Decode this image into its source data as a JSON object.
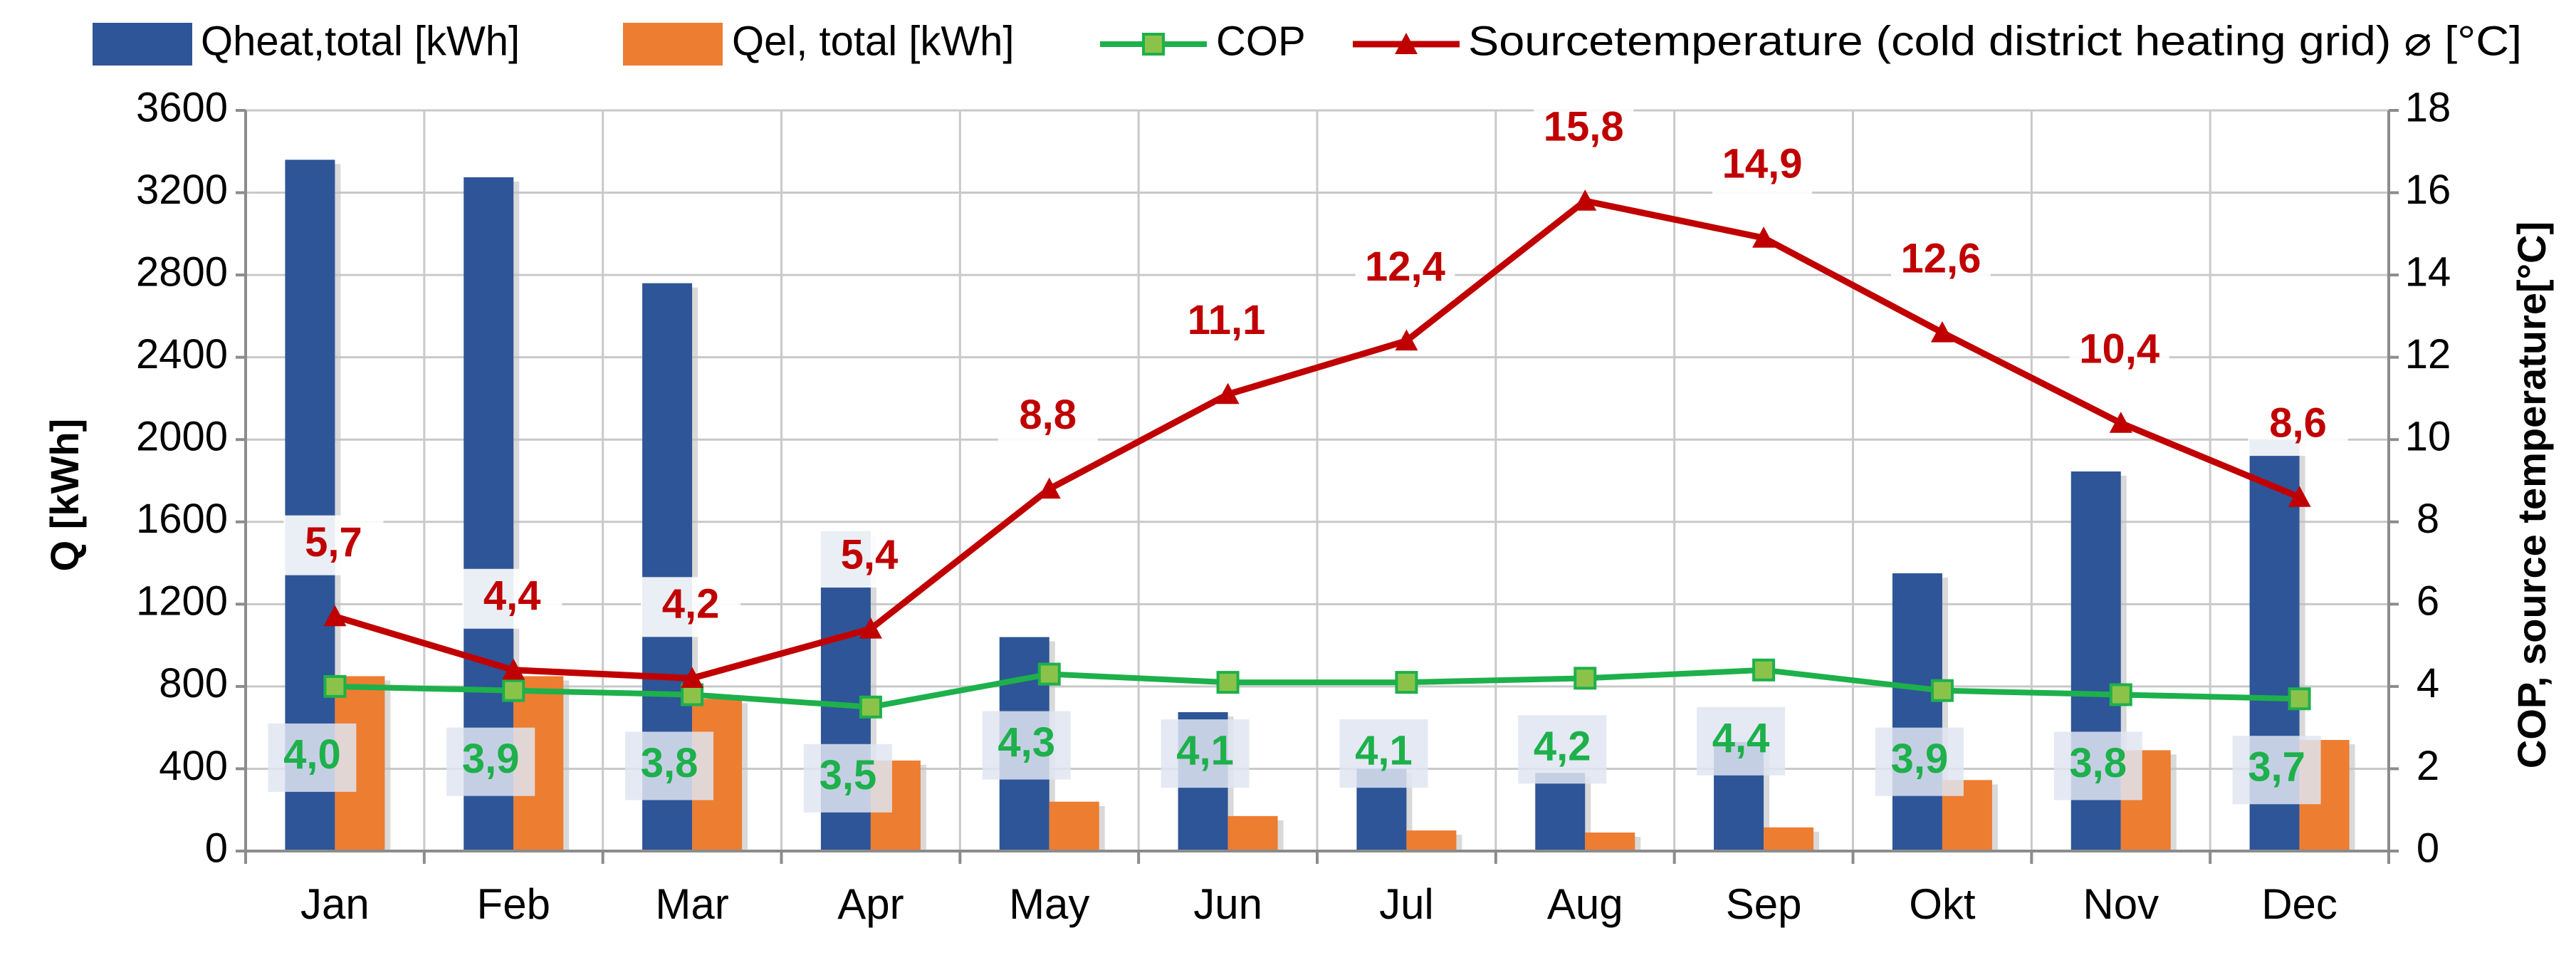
{
  "chart_data": {
    "type": "bar",
    "categories": [
      "Jan",
      "Feb",
      "Mar",
      "Apr",
      "May",
      "Jun",
      "Jul",
      "Aug",
      "Sep",
      "Okt",
      "Nov",
      "Dec"
    ],
    "series": [
      {
        "name": "Qheat,total [kWh]",
        "kind": "bar",
        "axis": "left",
        "color": "#2E5597",
        "values": [
          3360,
          3275,
          2760,
          1555,
          1040,
          675,
          400,
          380,
          530,
          1350,
          1845,
          2000
        ]
      },
      {
        "name": "Qel, total [kWh]",
        "kind": "bar",
        "axis": "left",
        "color": "#ED7D31",
        "values": [
          850,
          850,
          740,
          440,
          240,
          170,
          100,
          90,
          115,
          345,
          490,
          540
        ]
      },
      {
        "name": "COP",
        "kind": "line",
        "axis": "right",
        "color": "#1DB04B",
        "marker": "square",
        "marker_fill": "#8BC34A",
        "values": [
          4.0,
          3.9,
          3.8,
          3.5,
          4.3,
          4.1,
          4.1,
          4.2,
          4.4,
          3.9,
          3.8,
          3.7
        ],
        "labels": [
          "4,0",
          "3,9",
          "3,8",
          "3,5",
          "4,3",
          "4,1",
          "4,1",
          "4,2",
          "4,4",
          "3,9",
          "3,8",
          "3,7"
        ]
      },
      {
        "name": "Sourcetemperature (cold district heating grid) ⌀ [°C]",
        "kind": "line",
        "axis": "right",
        "color": "#C00000",
        "marker": "triangle",
        "values": [
          5.7,
          4.4,
          4.2,
          5.4,
          8.8,
          11.1,
          12.4,
          15.8,
          14.9,
          12.6,
          10.4,
          8.6
        ],
        "labels": [
          "5,7",
          "4,4",
          "4,2",
          "5,4",
          "8,8",
          "11,1",
          "12,4",
          "15,8",
          "14,9",
          "12,6",
          "10,4",
          "8,6"
        ]
      }
    ],
    "ylabel": "Q [kWh]",
    "y2label": "COP, source temperature[°C]",
    "ylim": [
      0,
      3600
    ],
    "yticks": [
      "0",
      "400",
      "800",
      "1200",
      "1600",
      "2000",
      "2400",
      "2800",
      "3200",
      "3600"
    ],
    "y2lim": [
      0,
      18
    ],
    "y2ticks": [
      "0",
      "2",
      "4",
      "6",
      "8",
      "10",
      "12",
      "14",
      "16",
      "18"
    ],
    "grid": true,
    "legend_position": "top"
  }
}
